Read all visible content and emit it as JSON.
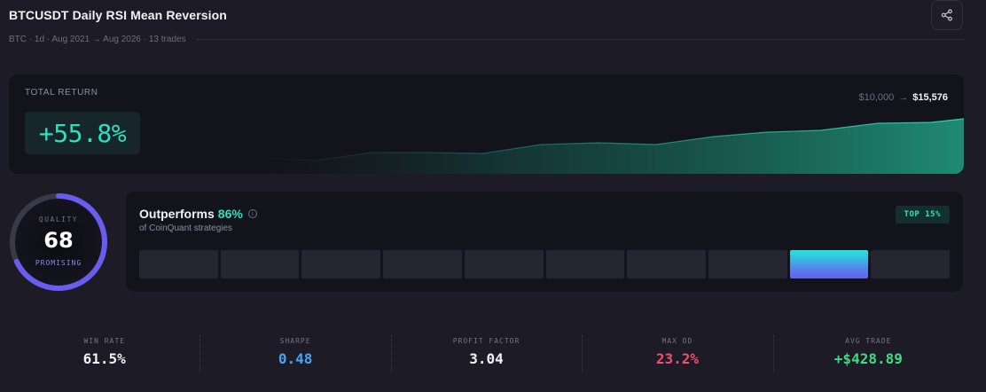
{
  "header": {
    "title": "BTCUSDT Daily RSI Mean Reversion",
    "subtitle": "BTC · 1d · Aug 2021 → Aug 2026 · 13 trades",
    "share_icon": "share-icon"
  },
  "total_return": {
    "label": "TOTAL RETURN",
    "value": "+55.8%",
    "start_equity": "$10,000",
    "arrow": "→",
    "end_equity": "$15,576",
    "color": "#2ee0c0"
  },
  "quality": {
    "label": "QUALITY",
    "score": "68",
    "score_value": 68,
    "rating": "PROMISING",
    "ring_color": "#6a5cf0"
  },
  "outperforms": {
    "title": "Outperforms",
    "percent": "86%",
    "subtitle": "of CoinQuant strategies",
    "badge": "TOP 15%",
    "bins_count": 10,
    "active_bin": 8
  },
  "stats": [
    {
      "label": "WIN RATE",
      "value": "61.5%",
      "color": "#f2f2f6"
    },
    {
      "label": "SHARPE",
      "value": "0.48",
      "color": "#4aa3f0"
    },
    {
      "label": "PROFIT FACTOR",
      "value": "3.04",
      "color": "#f2f2f6"
    },
    {
      "label": "MAX DD",
      "value": "23.2%",
      "color": "#f0506e"
    },
    {
      "label": "AVG TRADE",
      "value": "+$428.89",
      "color": "#3ddc84"
    }
  ]
}
